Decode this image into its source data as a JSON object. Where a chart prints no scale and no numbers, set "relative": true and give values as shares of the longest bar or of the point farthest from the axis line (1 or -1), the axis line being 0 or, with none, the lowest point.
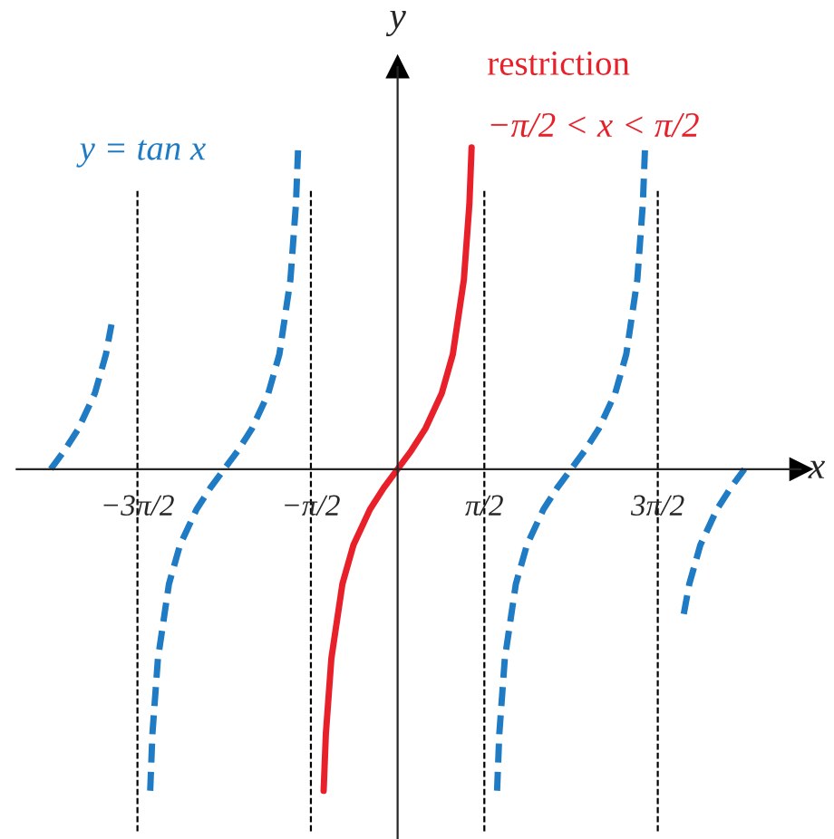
{
  "chart_data": {
    "type": "line",
    "relative": true,
    "xlabel": "x",
    "ylabel": "y",
    "xlim": [
      -6.9,
      7.3
    ],
    "xticks": [
      {
        "value": -4.7124,
        "label": "−3π/2"
      },
      {
        "value": -1.5708,
        "label": "−π/2"
      },
      {
        "value": 1.5708,
        "label": "π/2"
      },
      {
        "value": 4.7124,
        "label": "3π/2"
      }
    ],
    "series": [
      {
        "color": "#1f7bc4",
        "line_style": "dashed",
        "x": [
          -6.2832,
          -6.0332,
          -5.7832,
          -5.4832,
          -5.2832,
          -5.1832
        ],
        "values": [
          0,
          0.058,
          0.125,
          0.236,
          0.357,
          0.45
        ]
      },
      {
        "color": "#1f7bc4",
        "line_style": "dashed",
        "x": [
          -4.4816,
          -4.4416,
          -4.3416,
          -4.1416,
          -3.9416,
          -3.6416,
          -3.3916,
          -3.1416,
          -2.8916,
          -2.6416,
          -2.3416,
          -2.1416,
          -1.9416,
          -1.8416,
          -1.8016
        ],
        "values": [
          -1,
          -0.824,
          -0.589,
          -0.357,
          -0.236,
          -0.125,
          -0.058,
          0,
          0.058,
          0.125,
          0.236,
          0.357,
          0.589,
          0.824,
          1
        ]
      },
      {
        "color": "#e8202a",
        "line_style": "solid",
        "x": [
          -1.34,
          -1.3,
          -1.2,
          -1.0,
          -0.8,
          -0.5,
          -0.25,
          0,
          0.25,
          0.5,
          0.8,
          1.0,
          1.2,
          1.3,
          1.34
        ],
        "values": [
          -1,
          -0.824,
          -0.589,
          -0.357,
          -0.236,
          -0.125,
          -0.058,
          0,
          0.058,
          0.125,
          0.236,
          0.357,
          0.589,
          0.824,
          1
        ]
      },
      {
        "color": "#1f7bc4",
        "line_style": "dashed",
        "x": [
          1.8016,
          1.8416,
          1.9416,
          2.1416,
          2.3416,
          2.6416,
          2.8916,
          3.1416,
          3.3916,
          3.6416,
          3.9416,
          4.1416,
          4.3416,
          4.4416,
          4.4816
        ],
        "values": [
          -1,
          -0.824,
          -0.589,
          -0.357,
          -0.236,
          -0.125,
          -0.058,
          0,
          0.058,
          0.125,
          0.236,
          0.357,
          0.589,
          0.824,
          1
        ]
      },
      {
        "color": "#1f7bc4",
        "line_style": "dashed",
        "x": [
          5.1832,
          5.2832,
          5.4832,
          5.7832,
          6.0332,
          6.2832
        ],
        "values": [
          -0.45,
          -0.357,
          -0.236,
          -0.125,
          -0.058,
          0
        ]
      }
    ],
    "ref_lines": [
      {
        "axis": "x",
        "value": -4.7124,
        "color": "#000000",
        "line_style": "dashed"
      },
      {
        "axis": "x",
        "value": -1.5708,
        "color": "#000000",
        "line_style": "dashed"
      },
      {
        "axis": "x",
        "value": 1.5708,
        "color": "#000000",
        "line_style": "dashed"
      },
      {
        "axis": "x",
        "value": 4.7124,
        "color": "#000000",
        "line_style": "dashed"
      }
    ],
    "annotations": [
      "y = tan x",
      "restriction",
      "−π/2 < x < π/2"
    ]
  }
}
